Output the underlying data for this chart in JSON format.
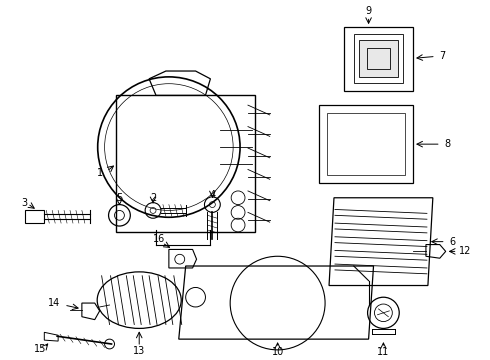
{
  "background_color": "#ffffff",
  "line_color": "#000000",
  "parts_labels": [
    "1",
    "2",
    "3",
    "4",
    "5",
    "6",
    "7",
    "8",
    "9",
    "10",
    "11",
    "12",
    "13",
    "14",
    "15",
    "16"
  ]
}
